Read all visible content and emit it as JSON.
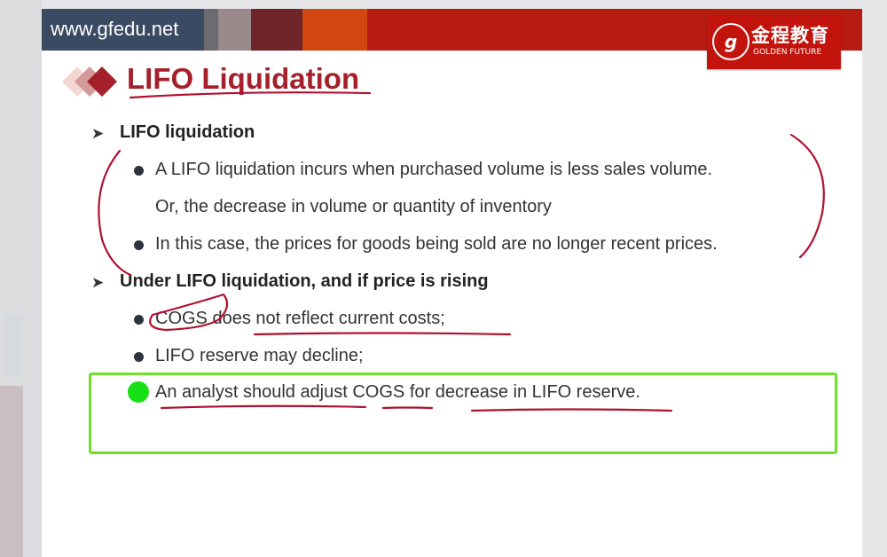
{
  "header": {
    "url": "www.gfedu.net",
    "logo_cn": "金程教育",
    "logo_en": "GOLDEN FUTURE",
    "logo_mark": "g"
  },
  "title": "LIFO Liquidation",
  "sections": [
    {
      "heading": "LIFO liquidation",
      "bullets": [
        "A LIFO liquidation incurs when purchased volume is less sales volume.",
        "Or, the decrease in volume or quantity of inventory",
        "In this case, the prices for goods being sold are no longer recent prices."
      ]
    },
    {
      "heading": "Under LIFO liquidation, and if price is rising",
      "bullets": [
        "COGS does not reflect current costs;",
        "LIFO reserve may decline;",
        "An analyst should adjust COGS for decrease in LIFO reserve."
      ]
    }
  ],
  "colors": {
    "brand_red": "#b81c10",
    "navy": "#3b4a63",
    "highlight_green": "#6ee02c",
    "ink": "#b01030"
  }
}
